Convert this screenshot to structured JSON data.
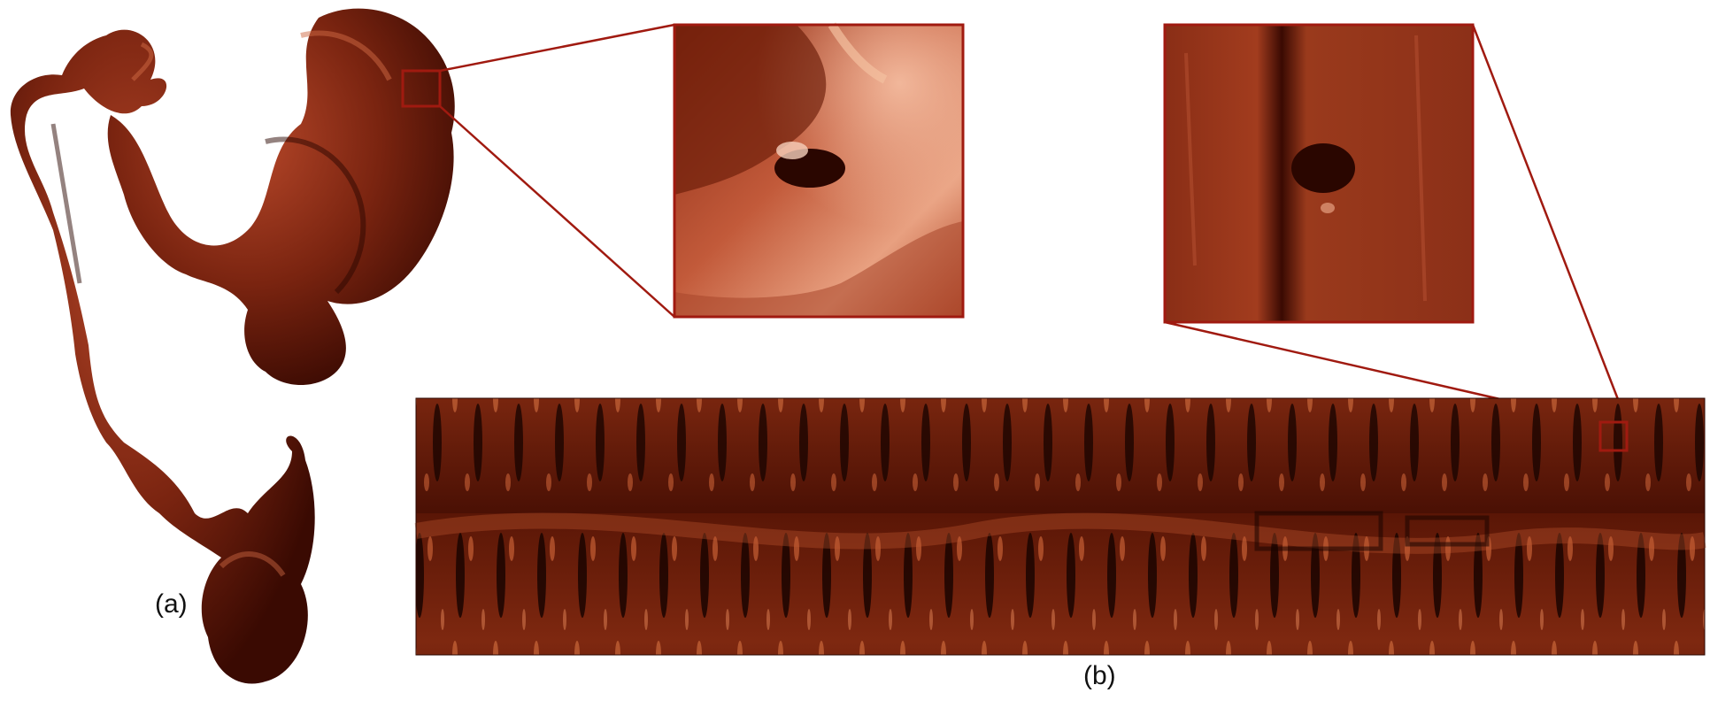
{
  "figure": {
    "panels": [
      {
        "id": "a",
        "label": "(a)"
      },
      {
        "id": "b",
        "label": "(b)"
      }
    ],
    "colors": {
      "tissue_dark": "#3a0a02",
      "tissue_mid": "#8a2a12",
      "tissue_light": "#d06040",
      "highlight": "#f2b090",
      "frame": "#a01a10",
      "background": "#ffffff"
    }
  }
}
